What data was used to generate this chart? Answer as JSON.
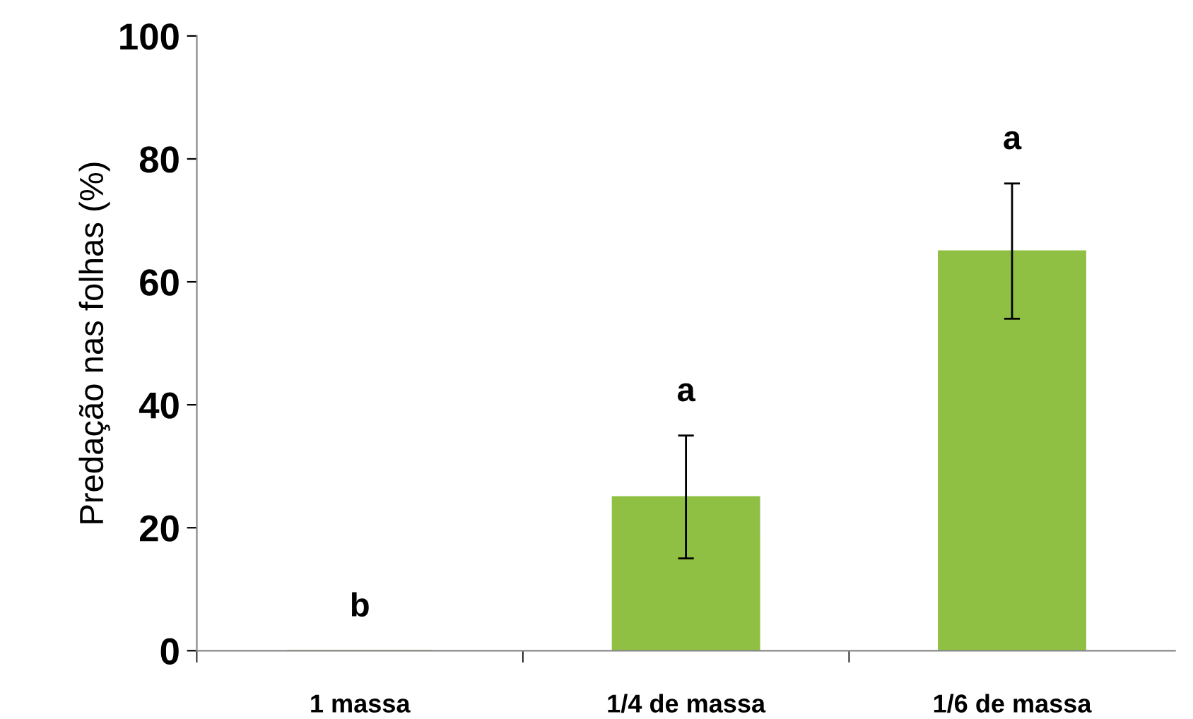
{
  "chart_data": {
    "type": "bar",
    "ylabel": "Predação nas folhas (%)",
    "categories": [
      "1 massa",
      "1/4 de massa",
      "1/6 de massa"
    ],
    "values": [
      0,
      25,
      65
    ],
    "errors": [
      null,
      10,
      11
    ],
    "color": "#8fc043",
    "ylim": [
      0,
      100
    ],
    "yticks": [
      0,
      20,
      40,
      60,
      80,
      100
    ],
    "grid": false,
    "annotations": [
      "b",
      "a",
      "a"
    ]
  }
}
